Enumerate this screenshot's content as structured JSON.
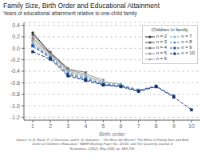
{
  "chart_data": {
    "type": "line",
    "title": "Family Size, Birth Order and Educational Attainment",
    "ylabel": "Years of educational attainment relative to one-child family",
    "xlabel": "Birth order",
    "source": "Source: S. E. Black, P. J. Devereux, and K. G. Salvanes, \" The More the Merrier? The Effect of Family Size and Birth\nOrder on Children's Education,\" NBER Working Paper No. 10720, and The Quarterly Journal of\nEconomics, 120(2), May 2005, pp. 669-700.",
    "legend_title": "Children in family",
    "legend": "upper right",
    "grid": true,
    "xlim": [
      0.5,
      10.5
    ],
    "xticks": [
      1,
      2,
      3,
      4,
      5,
      6,
      7,
      8,
      9,
      10
    ],
    "ylim": [
      -1.25,
      0.45
    ],
    "yticks": [
      -1.2,
      {
        "value": -1.0,
        "label": "-1.0"
      },
      -0.8,
      -0.6,
      -0.4,
      -0.2,
      {
        "value": 0.0,
        "label": "0.0"
      },
      0.2,
      0.4
    ],
    "series": [
      {
        "name": "n = 2",
        "color": "#2d2d2d",
        "line_style": "solid",
        "marker": "circle",
        "x": [
          1,
          2
        ],
        "values": [
          0.27,
          -0.08
        ]
      },
      {
        "name": "n = 3",
        "color": "#555555",
        "line_style": "solid",
        "marker": "circle",
        "x": [
          1,
          2,
          3
        ],
        "values": [
          0.23,
          -0.07,
          -0.35
        ]
      },
      {
        "name": "n = 4",
        "color": "#777777",
        "line_style": "solid",
        "marker": "circle",
        "x": [
          1,
          2,
          3,
          4
        ],
        "values": [
          0.18,
          -0.09,
          -0.36,
          -0.42
        ]
      },
      {
        "name": "n = 5",
        "color": "#999999",
        "line_style": "solid",
        "marker": "circle",
        "x": [
          1,
          2,
          3,
          4,
          5
        ],
        "values": [
          0.14,
          -0.1,
          -0.38,
          -0.45,
          -0.55
        ]
      },
      {
        "name": "n = 6",
        "color": "#aaaaaa",
        "line_style": "solid",
        "marker": "circle",
        "x": [
          1,
          2,
          3,
          4,
          5,
          6
        ],
        "values": [
          0.1,
          -0.12,
          -0.4,
          -0.48,
          -0.58,
          -0.62
        ]
      },
      {
        "name": "n = 7",
        "color": "#7aafc8",
        "line_style": "dashed",
        "marker": "circle",
        "x": [
          1,
          2,
          3,
          4,
          5,
          6,
          7
        ],
        "values": [
          0.07,
          -0.14,
          -0.42,
          -0.5,
          -0.6,
          -0.63,
          -0.72
        ]
      },
      {
        "name": "n = 8",
        "color": "#5588bb",
        "line_style": "dashed",
        "marker": "circle",
        "x": [
          1,
          2,
          3,
          4,
          5,
          6,
          7,
          8
        ],
        "values": [
          0.05,
          -0.15,
          -0.44,
          -0.52,
          -0.62,
          -0.65,
          -0.73,
          -0.65
        ]
      },
      {
        "name": "n = 9",
        "color": "#2255aa",
        "line_style": "dashed",
        "marker": "square",
        "x": [
          1,
          2,
          3,
          4,
          5,
          6,
          7,
          8,
          9
        ],
        "values": [
          0.04,
          -0.17,
          -0.46,
          -0.54,
          -0.63,
          -0.66,
          -0.74,
          -0.66,
          -0.83
        ]
      },
      {
        "name": "n = 10",
        "color": "#1a3366",
        "line_style": "dashed",
        "marker": "square",
        "x": [
          1,
          2,
          3,
          4,
          5,
          6,
          7,
          8,
          9,
          10
        ],
        "values": [
          -0.06,
          -0.19,
          -0.48,
          -0.56,
          -0.64,
          -0.67,
          -0.75,
          -0.67,
          -0.85,
          -1.07
        ]
      }
    ]
  }
}
